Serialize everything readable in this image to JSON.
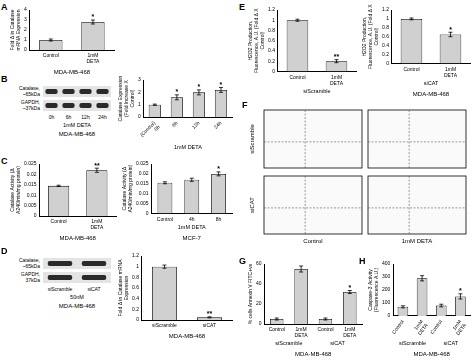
{
  "chart_data": [
    {
      "panel": "A",
      "type": "bar",
      "categories": [
        "Control",
        "1mM DETA"
      ],
      "values": [
        1,
        2.8
      ],
      "errors": [
        0.1,
        0.2
      ],
      "significance": [
        null,
        "*"
      ],
      "ylabel": "Fold Δ in Catalase mRNA Expression",
      "caption": "MDA-MB-468",
      "ylim": [
        0,
        4
      ],
      "yticks": [
        0,
        1,
        2,
        3,
        4
      ],
      "color": "#d0d0d0"
    },
    {
      "type": "bar",
      "categories": [
        "(Control) 0h",
        "6h",
        "12h",
        "24h"
      ],
      "values": [
        1,
        1.6,
        2.0,
        2.2
      ],
      "errors": [
        0.05,
        0.2,
        0.2,
        0.2
      ],
      "significance": [
        null,
        "*",
        "*",
        "*"
      ],
      "ylabel": "Catalase Expression (Fold Increase X Control)",
      "xlabel": "1mM DETA",
      "ylim": [
        0,
        3
      ],
      "yticks": [
        0,
        1,
        2,
        3
      ],
      "color": "#d0d0d0"
    },
    {
      "panel": "C",
      "type": "bar",
      "categories": [
        "Control",
        "1mM DETA"
      ],
      "values": [
        0.0145,
        0.022
      ],
      "errors": [
        0.0003,
        0.001
      ],
      "significance": [
        null,
        "**"
      ],
      "ylabel": "Catalase Activity (Δ A240/min/mg protein)",
      "caption": "MDA-MB-468",
      "ylim": [
        0,
        0.025
      ],
      "yticks": [
        0,
        0.005,
        0.01,
        0.015,
        0.02,
        0.025
      ],
      "color": "#d0d0d0"
    },
    {
      "type": "bar",
      "categories": [
        "Control",
        "4h",
        "8h"
      ],
      "values": [
        0.0155,
        0.017,
        0.02
      ],
      "errors": [
        0.0005,
        0.0008,
        0.001
      ],
      "significance": [
        null,
        null,
        "*"
      ],
      "ylabel": "Catalase Activity (Δ A240/min/mg protein)",
      "xlabel": "1mM DETA",
      "caption": "MCF-7",
      "ylim": [
        0,
        0.025
      ],
      "yticks": [
        0,
        0.005,
        0.01,
        0.015,
        0.02,
        0.025
      ],
      "color": "#d0d0d0"
    },
    {
      "type": "bar",
      "categories": [
        "siScramble",
        "siCAT"
      ],
      "values": [
        1,
        0.05
      ],
      "errors": [
        0.03,
        0.01
      ],
      "significance": [
        null,
        "**"
      ],
      "ylabel": "Fold Δ in Catalase mRNA Expression",
      "caption": "MDA-MB-468",
      "ylim": [
        0,
        1.2
      ],
      "yticks": [
        0,
        0.2,
        0.4,
        0.6,
        0.8,
        1,
        1.2
      ],
      "color": "#d0d0d0"
    },
    {
      "panel": "E",
      "type": "bar",
      "categories": [
        "Control",
        "1mM DETA"
      ],
      "values": [
        1,
        0.2
      ],
      "errors": [
        0.02,
        0.03
      ],
      "significance": [
        null,
        "**"
      ],
      "ylabel": "H2O2 Production, Fluorescence, A.U. (Fold Δ X Control)",
      "xlabel": "siScramble",
      "ylim": [
        0,
        1.2
      ],
      "yticks": [
        0,
        0.2,
        0.4,
        0.6,
        0.8,
        1,
        1.2
      ],
      "color": "#d0d0d0"
    },
    {
      "type": "bar",
      "categories": [
        "Control",
        "1mM DETA"
      ],
      "values": [
        1,
        0.65
      ],
      "errors": [
        0.02,
        0.05
      ],
      "significance": [
        null,
        "*"
      ],
      "ylabel": "H2O2 Production, Fluorescence, A.U. (Fold Δ X Control)",
      "xlabel": "siCAT",
      "caption": "MDA-MB-468",
      "ylim": [
        0,
        1.2
      ],
      "yticks": [
        0,
        0.2,
        0.4,
        0.6,
        0.8,
        1,
        1.2
      ],
      "color": "#d0d0d0"
    },
    {
      "panel": "G",
      "type": "bar",
      "categories": [
        "Control",
        "1mM DETA",
        "Control",
        "1mM DETA"
      ],
      "group_labels": [
        "siScramble",
        "siCAT"
      ],
      "values": [
        5,
        55,
        5,
        32
      ],
      "errors": [
        1,
        3,
        1,
        1.5
      ],
      "significance": [
        null,
        null,
        null,
        "*"
      ],
      "ylabel": "% cells Annexin V FITC+ve",
      "caption": "MDA-MB-468",
      "ylim": [
        0,
        60
      ],
      "yticks": [
        0,
        20,
        40,
        60
      ],
      "color": "#d0d0d0"
    },
    {
      "panel": "H",
      "type": "bar",
      "categories": [
        "Control",
        "1mM DETA",
        "Control",
        "1mM DETA"
      ],
      "group_labels": [
        "siScramble",
        "siCAT"
      ],
      "values": [
        70,
        290,
        80,
        150
      ],
      "errors": [
        8,
        20,
        10,
        20
      ],
      "significance": [
        null,
        null,
        null,
        "*"
      ],
      "ylabel": "Caspase-3 Activity (Fluorescence A.U.)",
      "caption": "MDA-MB-468",
      "ylim": [
        0,
        400
      ],
      "yticks": [
        0,
        100,
        200,
        300,
        400
      ],
      "color": "#d0d0d0"
    }
  ],
  "blots": [
    {
      "panel": "B",
      "rows": [
        "Catalase, ~65kDa",
        "GAPDH, ~37kDa"
      ],
      "lanes": [
        "0h",
        "6h",
        "12h",
        "24h"
      ],
      "lane_group": "1mM DETA",
      "caption": "MDA-MB-468"
    },
    {
      "panel": "D",
      "rows": [
        "Catalase, ~65kDa",
        "GAPDH, 37kDa"
      ],
      "lanes": [
        "siScramble",
        "siCAT"
      ],
      "lane_group": "50nM",
      "caption": "MDA-MB-468"
    }
  ],
  "flow_cytometry": {
    "panel": "F",
    "rows": [
      "siScramble",
      "siCAT"
    ],
    "columns": [
      "Control",
      "1mM DETA"
    ]
  }
}
